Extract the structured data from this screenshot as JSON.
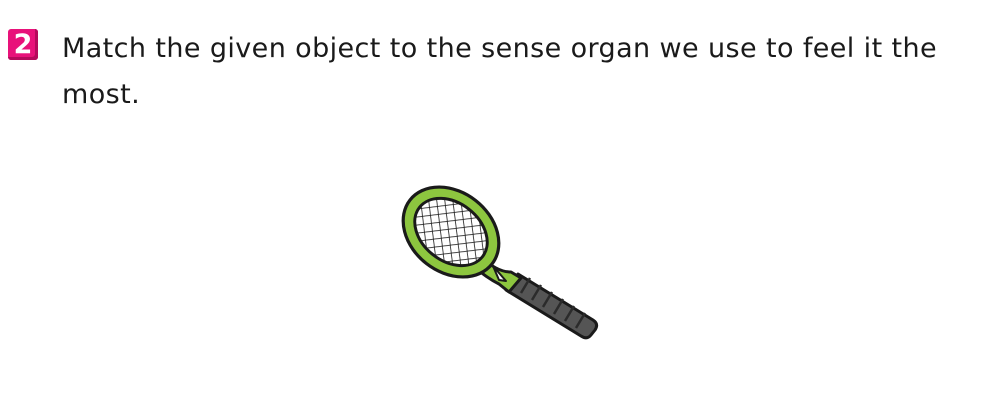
{
  "question": {
    "number": "2",
    "text": "Match the given object to the sense organ we use to feel it the most."
  },
  "object": {
    "icon": "tennis-racket-icon",
    "colors": {
      "frame": "#8dc63f",
      "outline": "#1a1a1a",
      "grip": "#555555",
      "strings": "#1a1a1a"
    }
  },
  "colors": {
    "badge": "#e8127a",
    "text": "#1a1a1a",
    "background": "#ffffff"
  }
}
